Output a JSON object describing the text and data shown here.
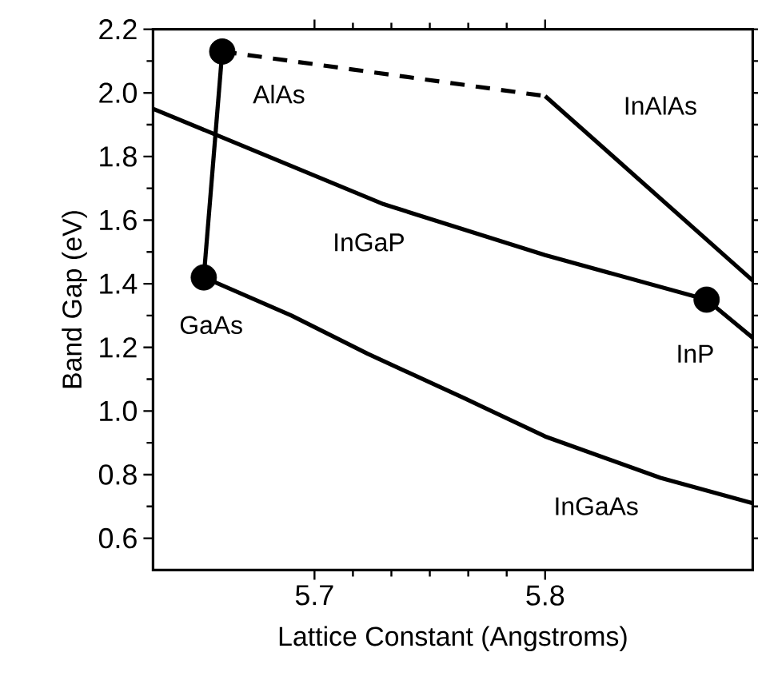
{
  "chart_data": {
    "type": "line",
    "xlabel": "Lattice Constant (Angstroms)",
    "ylabel": "Band Gap (eV)",
    "xlim": [
      5.63,
      5.89
    ],
    "ylim": [
      0.5,
      2.2
    ],
    "xticks": [
      5.7,
      5.8
    ],
    "yticks": [
      0.6,
      0.8,
      {
        "value": 1.0,
        "label": "1.0"
      },
      1.2,
      1.4,
      1.6,
      1.8,
      {
        "value": 2.0,
        "label": "2.0"
      },
      2.2
    ],
    "grid": false,
    "series": [
      {
        "color": "#000000",
        "line_style": "solid",
        "marker": "none",
        "x": [
          5.652,
          5.66
        ],
        "values": [
          1.42,
          2.13
        ]
      },
      {
        "color": "#000000",
        "line_style": "dashed",
        "marker": "none",
        "x": [
          5.66,
          5.8
        ],
        "values": [
          2.13,
          1.99
        ]
      },
      {
        "color": "#000000",
        "line_style": "solid",
        "marker": "none",
        "x": [
          5.8,
          5.89
        ],
        "values": [
          1.99,
          1.41
        ]
      },
      {
        "color": "#000000",
        "line_style": "solid",
        "marker": "none",
        "x": [
          5.63,
          5.67,
          5.73,
          5.8,
          5.87,
          5.89
        ],
        "values": [
          1.95,
          1.83,
          1.65,
          1.49,
          1.35,
          1.23
        ]
      },
      {
        "color": "#000000",
        "line_style": "solid",
        "marker": "none",
        "x": [
          5.652,
          5.69,
          5.723,
          5.765,
          5.8,
          5.85,
          5.89
        ],
        "values": [
          1.42,
          1.3,
          1.18,
          1.04,
          0.92,
          0.79,
          0.71
        ]
      },
      {
        "type": "scatter",
        "color": "#000000",
        "marker": "circle",
        "x": [
          5.66,
          5.652,
          5.87
        ],
        "values": [
          2.13,
          1.42,
          1.35
        ]
      }
    ],
    "annotations": [
      "AlAs",
      "GaAs",
      "InP",
      "InGaP",
      "InAlAs",
      "InGaAs"
    ]
  }
}
